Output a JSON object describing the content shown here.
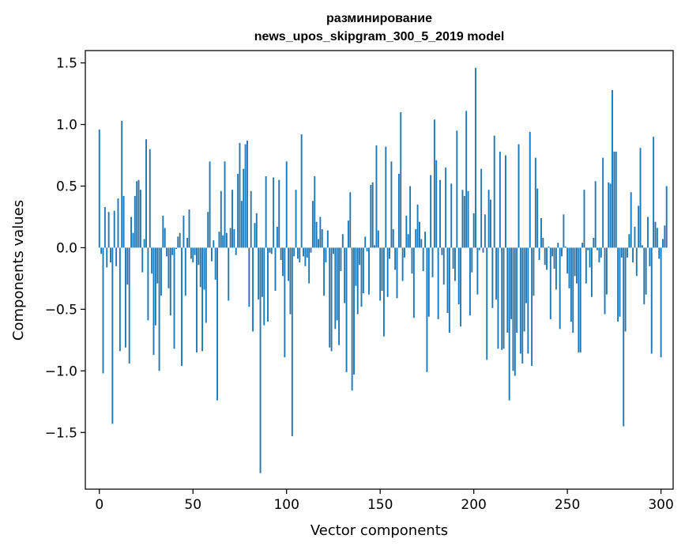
{
  "chart_data": {
    "type": "bar",
    "title_line1": "разминирование",
    "title_line2": "news_upos_skipgram_300_5_2019 model",
    "xlabel": "Vector components",
    "ylabel": "Components values",
    "xlim": [
      -7.5,
      306.5
    ],
    "ylim": [
      -1.96,
      1.6
    ],
    "xticks": [
      0,
      50,
      100,
      150,
      200,
      250,
      300
    ],
    "xtick_labels": [
      "0",
      "50",
      "100",
      "150",
      "200",
      "250",
      "300"
    ],
    "yticks": [
      -1.5,
      -1.0,
      -0.5,
      0.0,
      0.5,
      1.0,
      1.5
    ],
    "ytick_labels": [
      "−1.5",
      "−1.0",
      "−0.5",
      "0.0",
      "0.5",
      "1.0",
      "1.5"
    ],
    "bar_color": "#1f77b4",
    "bar_width": 0.8,
    "values": [
      0.96,
      -0.05,
      -1.02,
      0.33,
      -0.16,
      0.29,
      -0.12,
      -1.43,
      0.3,
      -0.15,
      0.4,
      -0.84,
      1.03,
      0.42,
      -0.81,
      -0.3,
      -0.94,
      0.25,
      0.12,
      0.42,
      0.54,
      0.55,
      0.47,
      -0.2,
      0.07,
      0.88,
      -0.59,
      0.8,
      -0.21,
      -0.87,
      -0.63,
      -0.29,
      -1.0,
      -0.39,
      0.26,
      0.16,
      -0.07,
      -0.33,
      -0.55,
      -0.06,
      -0.82,
      -0.01,
      0.09,
      0.12,
      -0.96,
      0.26,
      -0.39,
      0.08,
      0.31,
      -0.09,
      -0.12,
      -0.06,
      -0.85,
      -0.14,
      -0.32,
      -0.84,
      -0.34,
      -0.61,
      0.29,
      0.7,
      -0.11,
      0.06,
      -0.26,
      -1.24,
      0.13,
      0.46,
      0.1,
      0.7,
      0.12,
      -0.43,
      0.16,
      0.47,
      0.15,
      -0.06,
      0.6,
      0.85,
      0.38,
      0.64,
      0.84,
      0.87,
      -0.48,
      0.46,
      -0.68,
      0.2,
      0.28,
      -0.42,
      -1.83,
      -0.4,
      -0.63,
      0.58,
      -0.6,
      -0.04,
      -0.05,
      0.57,
      -0.35,
      0.17,
      0.55,
      -0.1,
      -0.23,
      -0.89,
      0.7,
      -0.27,
      -0.54,
      -1.53,
      -0.07,
      0.47,
      -0.09,
      -0.12,
      0.92,
      -0.07,
      -0.15,
      -0.08,
      -0.29,
      -0.04,
      0.38,
      0.58,
      0.21,
      0.07,
      0.25,
      0.15,
      -0.39,
      -0.12,
      0.14,
      -0.81,
      -0.84,
      -0.05,
      -0.66,
      -0.59,
      -0.79,
      -0.19,
      0.11,
      -0.45,
      -1.01,
      0.22,
      0.45,
      -1.16,
      -1.03,
      -0.31,
      -0.54,
      -0.14,
      -0.48,
      -0.37,
      0.09,
      -0.03,
      -0.38,
      0.51,
      0.53,
      0.02,
      0.83,
      0.14,
      -0.43,
      -0.35,
      -0.72,
      0.82,
      -0.4,
      -0.09,
      0.7,
      0.15,
      -0.18,
      -0.41,
      0.6,
      1.1,
      -0.27,
      -0.08,
      0.26,
      0.11,
      0.5,
      -0.21,
      -0.57,
      0.15,
      0.35,
      0.21,
      0.07,
      -0.19,
      0.13,
      -1.01,
      -0.56,
      0.59,
      -0.24,
      1.04,
      0.71,
      -0.58,
      0.55,
      -0.06,
      -0.3,
      0.65,
      -0.53,
      -0.69,
      0.52,
      -0.17,
      -0.27,
      0.95,
      -0.46,
      -0.64,
      0.47,
      0.42,
      1.11,
      0.46,
      -0.55,
      -0.2,
      0.28,
      1.46,
      -0.38,
      -0.02,
      0.64,
      -0.04,
      0.27,
      -0.91,
      0.47,
      0.39,
      -0.49,
      0.91,
      -0.42,
      -0.82,
      0.78,
      -0.83,
      -0.82,
      0.75,
      -0.69,
      -1.24,
      -0.58,
      -1.0,
      -1.04,
      -0.69,
      0.84,
      -0.86,
      -0.94,
      -0.68,
      -0.45,
      -0.86,
      0.94,
      -0.96,
      -0.39,
      0.73,
      0.48,
      -0.1,
      0.24,
      0.08,
      -0.14,
      -0.18,
      0.01,
      -0.58,
      -0.07,
      -0.17,
      -0.34,
      0.04,
      -0.66,
      -0.07,
      0.27,
      0.01,
      -0.21,
      -0.33,
      -0.6,
      -0.69,
      -0.23,
      -0.29,
      -0.85,
      -0.85,
      0.04,
      0.47,
      -0.29,
      -0.02,
      -0.16,
      -0.4,
      0.08,
      0.54,
      -0.02,
      -0.12,
      -0.08,
      0.73,
      -0.54,
      -0.38,
      0.53,
      0.52,
      1.28,
      0.78,
      0.78,
      -0.6,
      -0.56,
      -0.08,
      -1.45,
      -0.68,
      -0.08,
      0.11,
      0.45,
      -0.12,
      0.17,
      -0.23,
      0.34,
      0.81,
      0.02,
      -0.46,
      -0.38,
      0.25,
      -0.15,
      -0.86,
      0.9,
      0.21,
      0.16,
      -0.09,
      -0.89,
      0.07,
      0.18,
      0.5
    ]
  }
}
